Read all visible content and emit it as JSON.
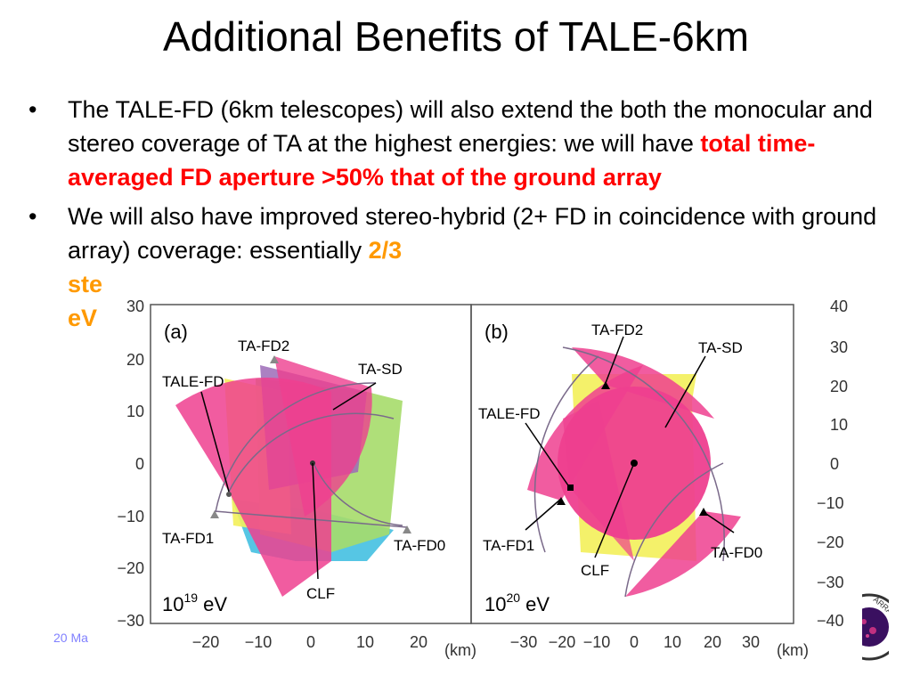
{
  "slide": {
    "title": "Additional Benefits of TALE-6km",
    "bullets": [
      {
        "symbol": "•",
        "text_plain": "The TALE-FD (6km telescopes) will also extend the both the monocular and stereo coverage of TA at the highest energies: we will have ",
        "text_highlight": "total time-averaged FD aperture >50% that of the ground array",
        "highlight_color": "#ff0000"
      },
      {
        "symbol": "•",
        "text_plain": "We will also have improved stereo-hybrid (2+ FD in coincidence with ground array) coverage: essentially ",
        "text_highlight": "2/3",
        "highlight_color": "#ff9900",
        "line3": "ste",
        "line4": "eV"
      }
    ],
    "footer": "20 Ma"
  },
  "figure": {
    "panel_a": {
      "label": "(a)",
      "energy_base": "10",
      "energy_exp": "19",
      "energy_unit": " eV",
      "x_unit": "(km)",
      "x_ticks": [
        "−20",
        "−10",
        "0",
        "10",
        "20"
      ],
      "y_ticks": [
        "30",
        "20",
        "10",
        "0",
        "−10",
        "−20",
        "−30"
      ],
      "site_labels": {
        "fd2": "TA-FD2",
        "tale": "TALE-FD",
        "sd": "TA-SD",
        "fd1": "TA-FD1",
        "fd0": "TA-FD0",
        "clf": "CLF"
      }
    },
    "panel_b": {
      "label": "(b)",
      "energy_base": "10",
      "energy_exp": "20",
      "energy_unit": " eV",
      "x_unit": "(km)",
      "x_ticks": [
        "−30",
        "−20",
        "−10",
        "0",
        "10",
        "20",
        "30"
      ],
      "y_ticks": [
        "40",
        "30",
        "20",
        "10",
        "0",
        "−10",
        "−20",
        "−30",
        "−40"
      ],
      "site_labels": {
        "fd2": "TA-FD2",
        "tale": "TALE-FD",
        "sd": "TA-SD",
        "fd1": "TA-FD1",
        "fd0": "TA-FD0",
        "clf": "CLF"
      }
    },
    "colors": {
      "magenta": "#ee3f8f",
      "yellow": "#f3f05a",
      "green": "#a6dc6a",
      "cyan": "#56c6e4",
      "purple": "#9c6bb7"
    }
  }
}
